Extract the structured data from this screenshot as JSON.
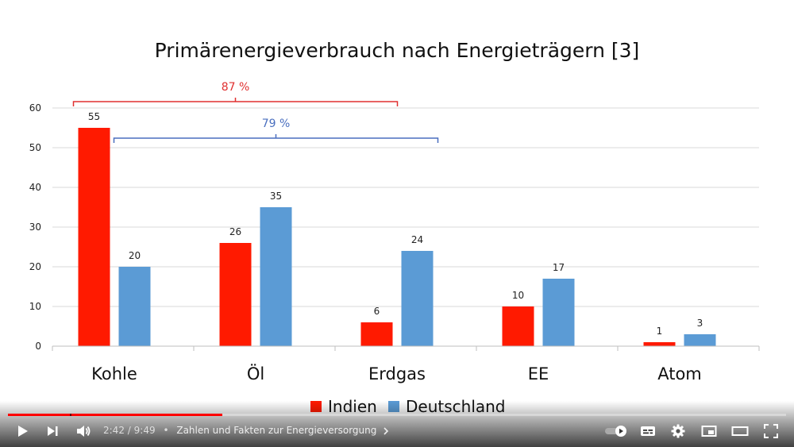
{
  "chart_data": {
    "type": "bar",
    "title": "Primärenergieverbrauch nach Energieträgern [3]",
    "categories": [
      "Kohle",
      "Öl",
      "Erdgas",
      "EE",
      "Atom"
    ],
    "series": [
      {
        "name": "Indien",
        "color": "#ff1a00",
        "values": [
          55,
          26,
          6,
          10,
          1
        ]
      },
      {
        "name": "Deutschland",
        "color": "#5b9bd5",
        "values": [
          20,
          35,
          24,
          17,
          3
        ]
      }
    ],
    "ylim": [
      0,
      60
    ],
    "yticks": [
      0,
      10,
      20,
      30,
      40,
      50,
      60
    ],
    "grid": true,
    "legend": "bottom",
    "annotations": [
      {
        "label": "87 %",
        "color": "#e03030",
        "series": "Indien",
        "from": "Kohle",
        "to": "Erdgas"
      },
      {
        "label": "79 %",
        "color": "#4a6fbf",
        "series": "Deutschland",
        "from": "Kohle",
        "to": "Erdgas"
      }
    ]
  },
  "player": {
    "time_current": "2:42",
    "time_total": "9:49",
    "time_separator": "/",
    "bullet": "•",
    "chapter_title": "Zahlen und Fakten zur Energieversorgung",
    "progress": 0.275,
    "chapter_mark": 0.08,
    "icons": [
      "play-icon",
      "next-icon",
      "volume-icon",
      "autoplay-toggle-icon",
      "subtitles-icon",
      "settings-gear-icon",
      "miniplayer-icon",
      "theater-mode-icon",
      "fullscreen-icon"
    ]
  }
}
